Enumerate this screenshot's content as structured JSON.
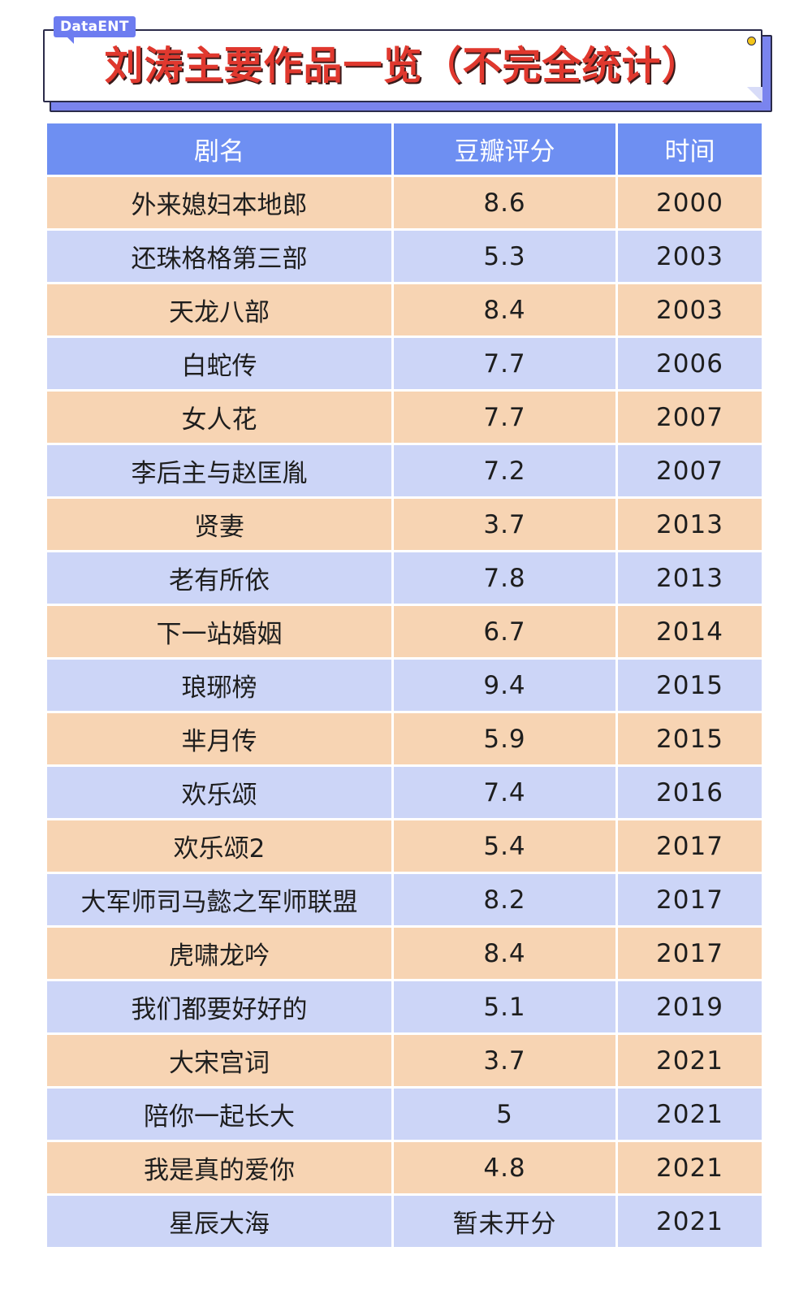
{
  "brand": "DataENT",
  "title": "刘涛主要作品一览（不完全统计）",
  "chart_data": {
    "type": "table",
    "title": "刘涛主要作品一览（不完全统计）",
    "columns": [
      "剧名",
      "豆瓣评分",
      "时间"
    ],
    "rows": [
      [
        "外来媳妇本地郎",
        "8.6",
        "2000"
      ],
      [
        "还珠格格第三部",
        "5.3",
        "2003"
      ],
      [
        "天龙八部",
        "8.4",
        "2003"
      ],
      [
        "白蛇传",
        "7.7",
        "2006"
      ],
      [
        "女人花",
        "7.7",
        "2007"
      ],
      [
        "李后主与赵匡胤",
        "7.2",
        "2007"
      ],
      [
        "贤妻",
        "3.7",
        "2013"
      ],
      [
        "老有所依",
        "7.8",
        "2013"
      ],
      [
        "下一站婚姻",
        "6.7",
        "2014"
      ],
      [
        "琅琊榜",
        "9.4",
        "2015"
      ],
      [
        "芈月传",
        "5.9",
        "2015"
      ],
      [
        "欢乐颂",
        "7.4",
        "2016"
      ],
      [
        "欢乐颂2",
        "5.4",
        "2017"
      ],
      [
        "大军师司马懿之军师联盟",
        "8.2",
        "2017"
      ],
      [
        "虎啸龙吟",
        "8.4",
        "2017"
      ],
      [
        "我们都要好好的",
        "5.1",
        "2019"
      ],
      [
        "大宋宫词",
        "3.7",
        "2021"
      ],
      [
        "陪你一起长大",
        "5",
        "2021"
      ],
      [
        "我是真的爱你",
        "4.8",
        "2021"
      ],
      [
        "星辰大海",
        "暂未开分",
        "2021"
      ]
    ]
  },
  "colors": {
    "header": "#6e8ff2",
    "row_odd": "#f7d4b3",
    "row_even": "#ccd5f7",
    "title_red": "#e0382e",
    "brand_blue": "#6d7cf0"
  }
}
